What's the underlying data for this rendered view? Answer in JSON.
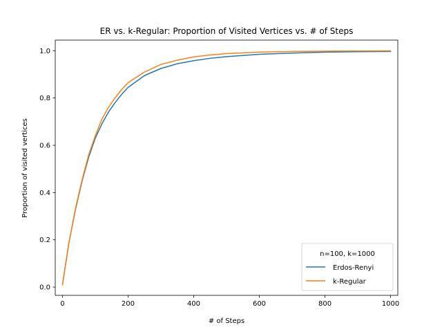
{
  "chart_data": {
    "type": "line",
    "title": "ER vs. k-Regular: Proportion of Visited Vertices vs. # of Steps",
    "xlabel": "# of Steps",
    "ylabel": "Proportion of visited vertices",
    "xlim": [
      -22,
      1022
    ],
    "ylim": [
      -0.035,
      1.045
    ],
    "xticks": [
      0,
      200,
      400,
      600,
      800,
      1000
    ],
    "yticks": [
      0.0,
      0.2,
      0.4,
      0.6,
      0.8,
      1.0
    ],
    "ytick_labels": [
      "0.0",
      "0.2",
      "0.4",
      "0.6",
      "0.8",
      "1.0"
    ],
    "grid": false,
    "legend": {
      "title": "n=100, k=1000",
      "position": "lower-right"
    },
    "x": [
      0,
      20,
      40,
      60,
      80,
      100,
      120,
      140,
      160,
      180,
      200,
      250,
      300,
      350,
      400,
      450,
      500,
      600,
      700,
      800,
      900,
      1000
    ],
    "series": [
      {
        "name": "Erdos-Renyi",
        "color": "#1f77b4",
        "values": [
          0.01,
          0.19,
          0.33,
          0.45,
          0.55,
          0.63,
          0.69,
          0.74,
          0.78,
          0.815,
          0.845,
          0.895,
          0.925,
          0.945,
          0.958,
          0.968,
          0.975,
          0.985,
          0.99,
          0.994,
          0.996,
          0.997
        ]
      },
      {
        "name": "k-Regular",
        "color": "#ff7f0e",
        "values": [
          0.01,
          0.19,
          0.335,
          0.455,
          0.56,
          0.64,
          0.71,
          0.76,
          0.8,
          0.835,
          0.865,
          0.91,
          0.942,
          0.96,
          0.974,
          0.982,
          0.988,
          0.994,
          0.997,
          0.998,
          0.999,
          0.9995
        ]
      }
    ]
  }
}
